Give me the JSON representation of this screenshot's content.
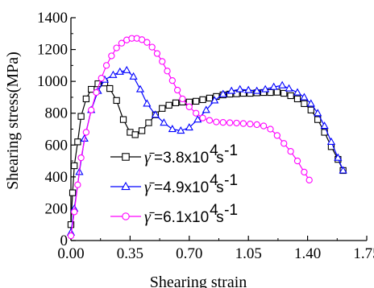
{
  "chart_data": {
    "type": "line",
    "xlabel": "Shearing strain",
    "ylabel": "Shearing stress(MPa)",
    "xlim": [
      0,
      1.75
    ],
    "ylim": [
      0,
      1400
    ],
    "xticks": [
      0.0,
      0.35,
      0.7,
      1.05,
      1.4,
      1.75
    ],
    "xtick_labels": [
      "0.00",
      "0.35",
      "0.70",
      "1.05",
      "1.40",
      "1.75"
    ],
    "yticks": [
      0,
      200,
      400,
      600,
      800,
      1000,
      1200,
      1400
    ],
    "ytick_labels": [
      "0",
      "200",
      "400",
      "600",
      "800",
      "1000",
      "1200",
      "1400"
    ],
    "grid": false,
    "legend_position": "lower-left",
    "series": [
      {
        "name": "=3.8x10^4 s^-1",
        "legend": {
          "symbol": "γ̄",
          "text": "=3.8x10",
          "exp1": "4",
          "unit": "s",
          "exp2": "-1"
        },
        "color": "#000000",
        "marker": "square",
        "x": [
          0.0,
          0.01,
          0.02,
          0.04,
          0.06,
          0.09,
          0.12,
          0.16,
          0.2,
          0.23,
          0.27,
          0.31,
          0.35,
          0.38,
          0.42,
          0.46,
          0.5,
          0.54,
          0.58,
          0.62,
          0.66,
          0.7,
          0.74,
          0.78,
          0.82,
          0.86,
          0.9,
          0.94,
          0.98,
          1.02,
          1.06,
          1.1,
          1.14,
          1.18,
          1.22,
          1.26,
          1.3,
          1.34,
          1.38,
          1.42,
          1.46,
          1.5,
          1.54,
          1.58,
          1.61
        ],
        "y": [
          100,
          300,
          470,
          620,
          780,
          890,
          950,
          985,
          990,
          955,
          880,
          760,
          680,
          665,
          690,
          740,
          790,
          830,
          850,
          865,
          870,
          870,
          875,
          885,
          895,
          905,
          915,
          920,
          922,
          925,
          925,
          928,
          930,
          930,
          932,
          925,
          910,
          890,
          860,
          820,
          760,
          680,
          590,
          510,
          440
        ]
      },
      {
        "name": "=4.9x10^4 s^-1",
        "legend": {
          "symbol": "γ̄",
          "text": "=4.9x10",
          "exp1": "4",
          "unit": "s",
          "exp2": "-1"
        },
        "color": "#0000ff",
        "marker": "triangle",
        "x": [
          0.0,
          0.02,
          0.05,
          0.08,
          0.12,
          0.16,
          0.2,
          0.25,
          0.29,
          0.33,
          0.37,
          0.41,
          0.45,
          0.5,
          0.55,
          0.6,
          0.65,
          0.7,
          0.75,
          0.8,
          0.85,
          0.9,
          0.95,
          1.0,
          1.05,
          1.1,
          1.15,
          1.2,
          1.25,
          1.29,
          1.34,
          1.38,
          1.42,
          1.46,
          1.5,
          1.54,
          1.58,
          1.61
        ],
        "y": [
          50,
          200,
          430,
          640,
          820,
          940,
          1010,
          1040,
          1060,
          1070,
          1030,
          950,
          860,
          790,
          740,
          700,
          690,
          710,
          760,
          820,
          880,
          920,
          940,
          950,
          945,
          940,
          950,
          965,
          975,
          955,
          930,
          900,
          860,
          800,
          720,
          620,
          520,
          440
        ]
      },
      {
        "name": "=6.1x10^4 s^-1",
        "legend": {
          "symbol": "γ̄",
          "text": "=6.1x10",
          "exp1": "4",
          "unit": "s",
          "exp2": "-1"
        },
        "color": "#ff00ff",
        "marker": "circle",
        "x": [
          0.0,
          0.02,
          0.04,
          0.06,
          0.09,
          0.12,
          0.15,
          0.18,
          0.21,
          0.24,
          0.27,
          0.3,
          0.33,
          0.36,
          0.39,
          0.42,
          0.45,
          0.48,
          0.51,
          0.54,
          0.57,
          0.6,
          0.63,
          0.66,
          0.7,
          0.74,
          0.78,
          0.82,
          0.86,
          0.9,
          0.94,
          0.98,
          1.02,
          1.06,
          1.1,
          1.14,
          1.18,
          1.22,
          1.26,
          1.3,
          1.34,
          1.38,
          1.41
        ],
        "y": [
          30,
          180,
          350,
          520,
          680,
          820,
          930,
          1020,
          1100,
          1160,
          1210,
          1240,
          1260,
          1270,
          1270,
          1262,
          1245,
          1215,
          1175,
          1125,
          1065,
          1005,
          945,
          890,
          840,
          800,
          770,
          755,
          745,
          742,
          740,
          738,
          735,
          732,
          728,
          720,
          700,
          660,
          610,
          560,
          500,
          430,
          380
        ]
      }
    ]
  }
}
